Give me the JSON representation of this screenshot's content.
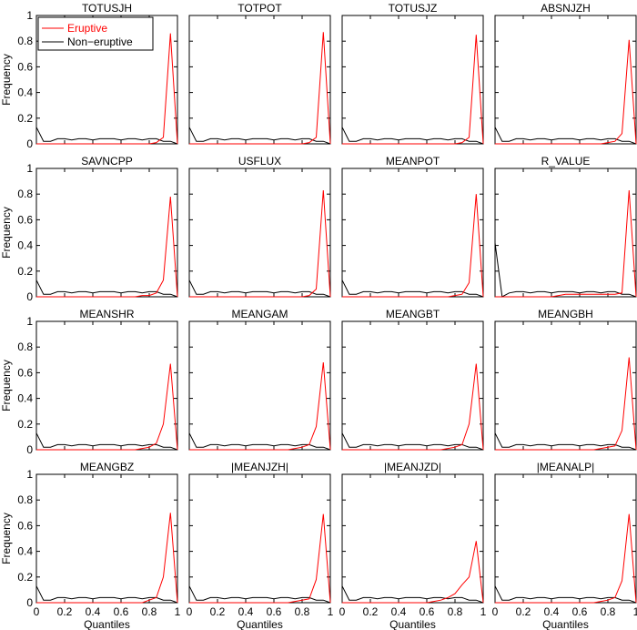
{
  "chart_data": {
    "type": "line",
    "grid": false,
    "ylabel": "Frequency",
    "xlabel": "Quantiles",
    "xlim": [
      0,
      1
    ],
    "ylim": [
      0,
      1
    ],
    "x_ticks": [
      "0",
      "0.2",
      "0.4",
      "0.6",
      "0.8",
      "1"
    ],
    "y_ticks": [
      "0",
      "0.2",
      "0.4",
      "0.6",
      "0.8",
      "1"
    ],
    "legend": {
      "placement": "top-left",
      "entries": [
        {
          "name": "Eruptive",
          "color": "#ff0000"
        },
        {
          "name": "Non−eruptive",
          "color": "#000000"
        }
      ]
    },
    "x": [
      0,
      0.05,
      0.1,
      0.15,
      0.2,
      0.25,
      0.3,
      0.35,
      0.4,
      0.45,
      0.5,
      0.55,
      0.6,
      0.65,
      0.7,
      0.75,
      0.8,
      0.85,
      0.9,
      0.95,
      1.0
    ],
    "non_eruptive": [
      0.13,
      0.02,
      0.02,
      0.04,
      0.04,
      0.03,
      0.04,
      0.04,
      0.03,
      0.04,
      0.04,
      0.04,
      0.03,
      0.04,
      0.04,
      0.03,
      0.04,
      0.04,
      0.02,
      0.02,
      0.0
    ],
    "non_eruptive_rvalue": [
      0.42,
      0.0,
      0.03,
      0.04,
      0.04,
      0.03,
      0.04,
      0.04,
      0.03,
      0.04,
      0.04,
      0.04,
      0.03,
      0.04,
      0.04,
      0.03,
      0.04,
      0.04,
      0.02,
      0.02,
      0.0
    ],
    "panels": [
      {
        "title": "TOTUSJH",
        "eruptive": [
          0,
          0,
          0,
          0,
          0,
          0,
          0,
          0,
          0,
          0,
          0,
          0,
          0,
          0,
          0,
          0,
          0,
          0.01,
          0.05,
          0.86,
          0
        ]
      },
      {
        "title": "TOTPOT",
        "eruptive": [
          0,
          0,
          0,
          0,
          0,
          0,
          0,
          0,
          0,
          0,
          0,
          0,
          0,
          0,
          0,
          0,
          0,
          0.01,
          0.05,
          0.87,
          0
        ]
      },
      {
        "title": "TOTUSJZ",
        "eruptive": [
          0,
          0,
          0,
          0,
          0,
          0,
          0,
          0,
          0,
          0,
          0,
          0,
          0,
          0,
          0,
          0,
          0,
          0.01,
          0.05,
          0.85,
          0
        ]
      },
      {
        "title": "ABSNJZH",
        "eruptive": [
          0,
          0,
          0,
          0,
          0,
          0,
          0,
          0,
          0,
          0,
          0,
          0,
          0,
          0,
          0,
          0,
          0.01,
          0.02,
          0.08,
          0.81,
          0
        ]
      },
      {
        "title": "SAVNCPP",
        "eruptive": [
          0,
          0,
          0,
          0,
          0,
          0,
          0,
          0,
          0,
          0,
          0,
          0,
          0,
          0,
          0,
          0.01,
          0.01,
          0.03,
          0.13,
          0.78,
          0
        ]
      },
      {
        "title": "USFLUX",
        "eruptive": [
          0,
          0,
          0,
          0,
          0,
          0,
          0,
          0,
          0,
          0,
          0,
          0,
          0,
          0,
          0,
          0,
          0,
          0.01,
          0.06,
          0.83,
          0
        ]
      },
      {
        "title": "MEANPOT",
        "eruptive": [
          0,
          0,
          0,
          0,
          0,
          0,
          0,
          0,
          0,
          0,
          0,
          0,
          0,
          0,
          0,
          0,
          0.01,
          0.02,
          0.11,
          0.8,
          0
        ]
      },
      {
        "title": "R_VALUE",
        "eruptive": [
          0,
          0,
          0,
          0,
          0,
          0,
          0,
          0,
          0,
          0.01,
          0.02,
          0.02,
          0.02,
          0.02,
          0.02,
          0.02,
          0.02,
          0.02,
          0.03,
          0.83,
          0
        ]
      },
      {
        "title": "MEANSHR",
        "eruptive": [
          0,
          0,
          0,
          0,
          0,
          0,
          0,
          0,
          0,
          0,
          0,
          0,
          0,
          0,
          0,
          0.01,
          0.02,
          0.05,
          0.2,
          0.67,
          0
        ]
      },
      {
        "title": "MEANGAM",
        "eruptive": [
          0,
          0,
          0,
          0,
          0,
          0,
          0,
          0,
          0,
          0,
          0,
          0,
          0,
          0,
          0,
          0.01,
          0.02,
          0.04,
          0.18,
          0.68,
          0
        ]
      },
      {
        "title": "MEANGBT",
        "eruptive": [
          0,
          0,
          0,
          0,
          0,
          0,
          0,
          0,
          0,
          0,
          0,
          0,
          0,
          0,
          0,
          0.01,
          0.02,
          0.04,
          0.2,
          0.67,
          0
        ]
      },
      {
        "title": "MEANGBH",
        "eruptive": [
          0,
          0,
          0,
          0,
          0,
          0,
          0,
          0,
          0,
          0,
          0,
          0,
          0,
          0,
          0,
          0.01,
          0.02,
          0.03,
          0.15,
          0.72,
          0
        ]
      },
      {
        "title": "MEANGBZ",
        "eruptive": [
          0,
          0,
          0,
          0,
          0,
          0,
          0,
          0,
          0,
          0,
          0,
          0,
          0,
          0,
          0,
          0,
          0.02,
          0.04,
          0.2,
          0.7,
          0
        ]
      },
      {
        "title": "|MEANJZH|",
        "eruptive": [
          0,
          0,
          0,
          0,
          0,
          0,
          0,
          0,
          0,
          0,
          0,
          0,
          0,
          0,
          0,
          0.01,
          0.02,
          0.03,
          0.18,
          0.69,
          0
        ]
      },
      {
        "title": "|MEANJZD|",
        "eruptive": [
          0,
          0,
          0,
          0,
          0,
          0,
          0,
          0,
          0,
          0,
          0,
          0,
          0,
          0.01,
          0.02,
          0.04,
          0.07,
          0.14,
          0.2,
          0.48,
          0
        ]
      },
      {
        "title": "|MEANALP|",
        "eruptive": [
          0,
          0,
          0,
          0,
          0,
          0,
          0,
          0,
          0,
          0,
          0,
          0,
          0,
          0,
          0,
          0.01,
          0.02,
          0.04,
          0.17,
          0.69,
          0
        ]
      }
    ]
  }
}
